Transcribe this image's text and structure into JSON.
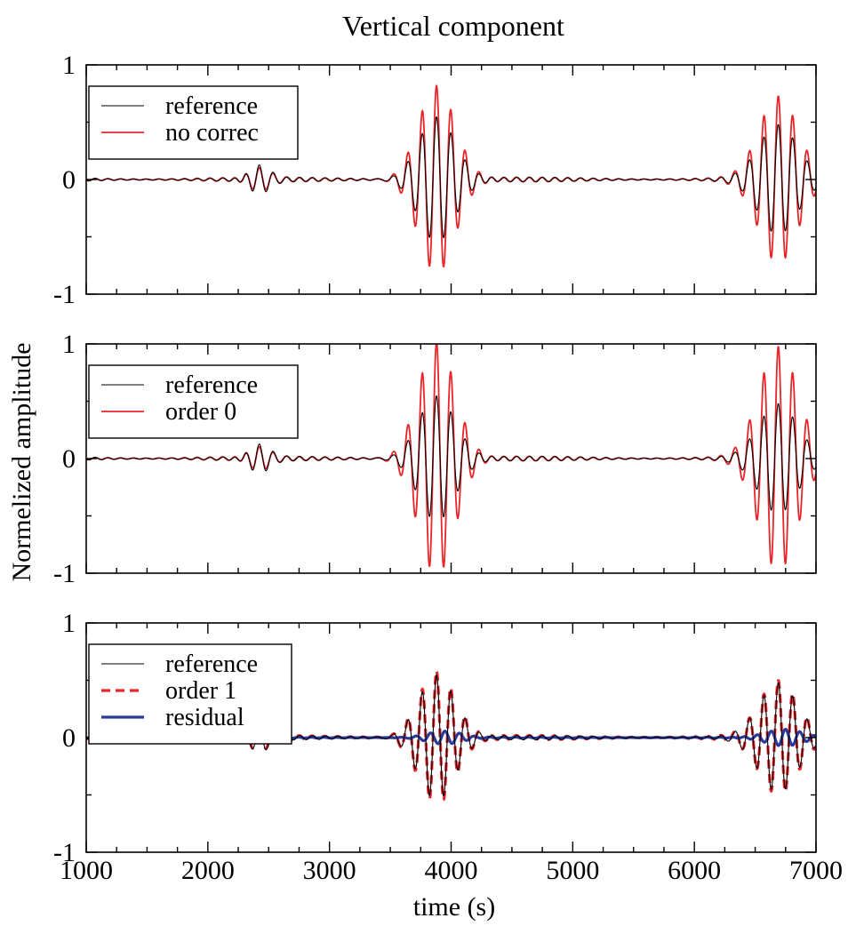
{
  "chart_data": {
    "type": "line",
    "title": "Vertical component",
    "xlabel": "time (s)",
    "ylabel": "Normelized amplitude",
    "xlim": [
      1000,
      7000
    ],
    "ylim": [
      -1,
      1
    ],
    "xticks": [
      1000,
      2000,
      3000,
      4000,
      5000,
      6000,
      7000
    ],
    "yticks": [
      -1,
      0,
      1
    ],
    "grid": false,
    "legend_position": "top-left",
    "colors": {
      "reference": "#000000",
      "red": "#e8262a",
      "blue": "#2a3a9a"
    },
    "panels": [
      {
        "id": "panel-1",
        "legend": [
          "reference",
          "no correc"
        ],
        "series": [
          {
            "name": "reference",
            "style": "solid",
            "color": "#000000",
            "packets": [
              {
                "t0": 2420,
                "period": 115,
                "sigma": 85,
                "amp": 0.12
              },
              {
                "t0": 3880,
                "period": 118,
                "sigma": 150,
                "amp": 0.55
              },
              {
                "t0": 6690,
                "period": 118,
                "sigma": 160,
                "amp": 0.5
              }
            ],
            "noise": 0.02
          },
          {
            "name": "no correc",
            "style": "solid",
            "color": "#e8262a",
            "packets": [
              {
                "t0": 2420,
                "period": 115,
                "sigma": 85,
                "amp": 0.09
              },
              {
                "t0": 3880,
                "period": 118,
                "sigma": 150,
                "amp": 0.82
              },
              {
                "t0": 6690,
                "period": 118,
                "sigma": 160,
                "amp": 0.75
              }
            ],
            "noise": 0.02
          }
        ]
      },
      {
        "id": "panel-2",
        "legend": [
          "reference",
          "order 0"
        ],
        "series": [
          {
            "name": "reference",
            "style": "solid",
            "color": "#000000",
            "packets": [
              {
                "t0": 2420,
                "period": 115,
                "sigma": 85,
                "amp": 0.12
              },
              {
                "t0": 3880,
                "period": 118,
                "sigma": 150,
                "amp": 0.55
              },
              {
                "t0": 6690,
                "period": 118,
                "sigma": 160,
                "amp": 0.5
              }
            ],
            "noise": 0.02
          },
          {
            "name": "order 0",
            "style": "solid",
            "color": "#e8262a",
            "packets": [
              {
                "t0": 2420,
                "period": 115,
                "sigma": 85,
                "amp": 0.09
              },
              {
                "t0": 3880,
                "period": 118,
                "sigma": 150,
                "amp": 1.02
              },
              {
                "t0": 6690,
                "period": 118,
                "sigma": 160,
                "amp": 1.0
              }
            ],
            "noise": 0.02
          }
        ]
      },
      {
        "id": "panel-3",
        "legend": [
          "reference",
          "order 1",
          "residual"
        ],
        "series": [
          {
            "name": "reference",
            "style": "solid",
            "color": "#000000",
            "packets": [
              {
                "t0": 2420,
                "period": 115,
                "sigma": 85,
                "amp": 0.12
              },
              {
                "t0": 3880,
                "period": 118,
                "sigma": 150,
                "amp": 0.55
              },
              {
                "t0": 6690,
                "period": 118,
                "sigma": 160,
                "amp": 0.5
              }
            ],
            "noise": 0.02
          },
          {
            "name": "order 1",
            "style": "dashed",
            "color": "#e8262a",
            "packets": [
              {
                "t0": 2420,
                "period": 115,
                "sigma": 85,
                "amp": 0.1
              },
              {
                "t0": 3880,
                "period": 118,
                "sigma": 150,
                "amp": 0.58
              },
              {
                "t0": 6690,
                "period": 118,
                "sigma": 160,
                "amp": 0.52
              }
            ],
            "noise": 0.02
          },
          {
            "name": "residual",
            "style": "thick",
            "color": "#2a3a9a",
            "packets": [
              {
                "t0": 3950,
                "period": 118,
                "sigma": 140,
                "amp": 0.06
              },
              {
                "t0": 6750,
                "period": 118,
                "sigma": 150,
                "amp": 0.07
              }
            ],
            "noise": 0.005
          }
        ]
      }
    ]
  }
}
